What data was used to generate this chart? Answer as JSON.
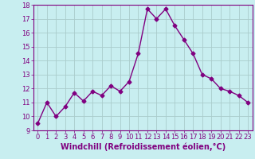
{
  "x": [
    0,
    1,
    2,
    3,
    4,
    5,
    6,
    7,
    8,
    9,
    10,
    11,
    12,
    13,
    14,
    15,
    16,
    17,
    18,
    19,
    20,
    21,
    22,
    23
  ],
  "y": [
    9.5,
    11.0,
    10.0,
    10.7,
    11.7,
    11.1,
    11.8,
    11.5,
    12.2,
    11.8,
    12.5,
    14.5,
    17.7,
    17.0,
    17.7,
    16.5,
    15.5,
    14.5,
    13.0,
    12.7,
    12.0,
    11.8,
    11.5,
    11.0
  ],
  "line_color": "#800080",
  "marker": "D",
  "marker_size": 2.5,
  "line_width": 1.0,
  "bg_color": "#c8eef0",
  "grid_color": "#aacccc",
  "xlabel": "Windchill (Refroidissement éolien,°C)",
  "xlim": [
    -0.5,
    23.5
  ],
  "ylim": [
    9,
    18
  ],
  "yticks": [
    9,
    10,
    11,
    12,
    13,
    14,
    15,
    16,
    17,
    18
  ],
  "xticks": [
    0,
    1,
    2,
    3,
    4,
    5,
    6,
    7,
    8,
    9,
    10,
    11,
    12,
    13,
    14,
    15,
    16,
    17,
    18,
    19,
    20,
    21,
    22,
    23
  ],
  "tick_fontsize": 6.0,
  "xlabel_fontsize": 7.0,
  "tick_color": "#800080",
  "label_color": "#800080",
  "spine_color": "#800080"
}
